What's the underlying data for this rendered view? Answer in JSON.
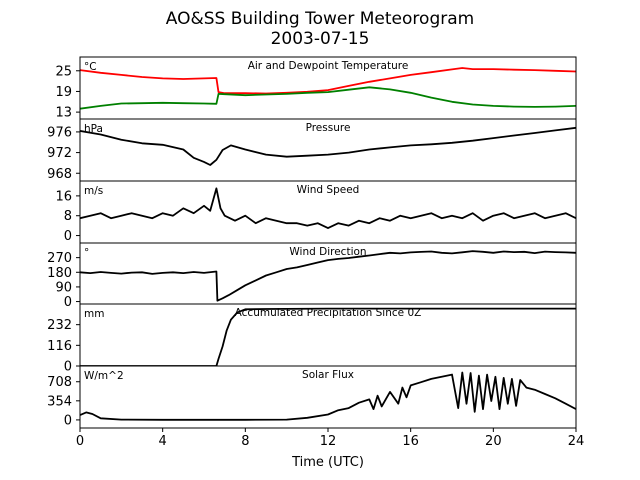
{
  "chart_data": {
    "type": "line",
    "title": "AO&SS Building Tower Meteorogram",
    "subtitle": "2003-07-15",
    "xlabel": "Time (UTC)",
    "xlim": [
      0,
      24
    ],
    "xticks": [
      0,
      4,
      8,
      12,
      16,
      20,
      24
    ],
    "panels": [
      {
        "title": "Air and Dewpoint Temperature",
        "unit": "°C",
        "ylim": [
          11,
          29
        ],
        "yticks": [
          13,
          19,
          25
        ],
        "series": [
          {
            "name": "Air Temperature",
            "color": "#ff0000",
            "x": [
              0,
              1,
              2,
              3,
              4,
              5,
              6,
              6.6,
              6.7,
              7,
              8,
              9,
              10,
              11,
              12,
              13,
              14,
              15,
              16,
              17,
              18,
              18.5,
              19,
              20,
              21,
              22,
              23,
              24
            ],
            "y": [
              25.2,
              24.4,
              23.8,
              23.2,
              22.8,
              22.6,
              22.8,
              22.9,
              18.8,
              18.5,
              18.5,
              18.4,
              18.6,
              18.9,
              19.4,
              20.6,
              21.8,
              22.8,
              23.8,
              24.6,
              25.4,
              25.8,
              25.5,
              25.5,
              25.3,
              25.2,
              25.0,
              24.8
            ]
          },
          {
            "name": "Dewpoint Temperature",
            "color": "#008000",
            "x": [
              0,
              1,
              2,
              3,
              4,
              5,
              6,
              6.6,
              6.7,
              7,
              8,
              9,
              10,
              11,
              12,
              13,
              14,
              15,
              16,
              17,
              18,
              19,
              20,
              21,
              22,
              23,
              24
            ],
            "y": [
              14.0,
              14.8,
              15.5,
              15.6,
              15.7,
              15.6,
              15.5,
              15.4,
              18.3,
              18.2,
              17.9,
              18.1,
              18.3,
              18.6,
              18.8,
              19.5,
              20.2,
              19.6,
              18.6,
              17.2,
              16.0,
              15.2,
              14.8,
              14.6,
              14.5,
              14.6,
              14.8
            ]
          }
        ]
      },
      {
        "title": "Pressure",
        "unit": "hPa",
        "ylim": [
          966.5,
          978.5
        ],
        "yticks": [
          968,
          972,
          976
        ],
        "series": [
          {
            "name": "Pressure",
            "color": "#000000",
            "x": [
              0,
              1,
              2,
              3,
              4,
              5,
              5.5,
              6,
              6.3,
              6.6,
              6.9,
              7.3,
              8,
              9,
              10,
              11,
              12,
              13,
              14,
              15,
              16,
              17,
              18,
              19,
              20,
              21,
              22,
              23,
              24
            ],
            "y": [
              976.2,
              975.5,
              974.5,
              973.8,
              973.5,
              972.6,
              971.0,
              970.2,
              969.6,
              970.6,
              972.5,
              973.4,
              972.6,
              971.6,
              971.2,
              971.4,
              971.6,
              972.0,
              972.6,
              973.0,
              973.4,
              973.6,
              973.9,
              974.3,
              974.8,
              975.3,
              975.8,
              976.3,
              976.8
            ]
          }
        ]
      },
      {
        "title": "Wind Speed",
        "unit": "m/s",
        "ylim": [
          -3,
          22
        ],
        "yticks": [
          0,
          8,
          16
        ],
        "series": [
          {
            "name": "Wind Speed",
            "color": "#000000",
            "x": [
              0,
              0.5,
              1,
              1.5,
              2,
              2.5,
              3,
              3.5,
              4,
              4.5,
              5,
              5.5,
              6,
              6.3,
              6.6,
              6.8,
              7,
              7.5,
              8,
              8.5,
              9,
              9.5,
              10,
              10.5,
              11,
              11.5,
              12,
              12.5,
              13,
              13.5,
              14,
              14.5,
              15,
              15.5,
              16,
              16.5,
              17,
              17.5,
              18,
              18.5,
              19,
              19.5,
              20,
              20.5,
              21,
              21.5,
              22,
              22.5,
              23,
              23.5,
              24
            ],
            "y": [
              7,
              8,
              9,
              7,
              8,
              9,
              8,
              7,
              9,
              8,
              11,
              9,
              12,
              10,
              19,
              11,
              8,
              6,
              8,
              5,
              7,
              6,
              5,
              5,
              4,
              5,
              3,
              5,
              4,
              6,
              5,
              7,
              6,
              8,
              7,
              8,
              9,
              7,
              8,
              7,
              9,
              6,
              8,
              9,
              7,
              8,
              9,
              7,
              8,
              9,
              7
            ]
          }
        ]
      },
      {
        "title": "Wind Direction",
        "unit": "°",
        "ylim": [
          -15,
          360
        ],
        "yticks": [
          0,
          90,
          180,
          270
        ],
        "series": [
          {
            "name": "Wind Direction",
            "color": "#000000",
            "x": [
              0,
              0.5,
              1,
              1.5,
              2,
              2.5,
              3,
              3.5,
              4,
              4.5,
              5,
              5.5,
              6,
              6.6,
              6.65,
              6.9,
              7.2,
              7.6,
              8,
              8.5,
              9,
              9.5,
              10,
              10.5,
              11,
              11.5,
              12,
              12.5,
              13,
              13.5,
              14,
              14.5,
              15,
              15.5,
              16,
              16.5,
              17,
              17.5,
              18,
              18.5,
              19,
              19.5,
              20,
              20.5,
              21,
              21.5,
              22,
              22.5,
              23,
              23.5,
              24
            ],
            "y": [
              180,
              175,
              182,
              176,
              172,
              178,
              180,
              170,
              176,
              180,
              175,
              182,
              176,
              185,
              5,
              20,
              40,
              70,
              100,
              130,
              160,
              180,
              200,
              210,
              225,
              240,
              255,
              262,
              268,
              276,
              283,
              292,
              300,
              296,
              302,
              305,
              308,
              300,
              296,
              303,
              310,
              306,
              300,
              308,
              304,
              306,
              298,
              307,
              304,
              302,
              300
            ]
          }
        ]
      },
      {
        "title": "Accumulated Precipitation Since 0Z",
        "unit": "mm",
        "ylim": [
          0,
          348
        ],
        "yticks": [
          0,
          116,
          232
        ],
        "series": [
          {
            "name": "Accumulated Precipitation",
            "color": "#000000",
            "x": [
              0,
              6.6,
              6.7,
              6.9,
              7.1,
              7.3,
              7.6,
              8,
              9,
              12,
              16,
              20,
              24
            ],
            "y": [
              0,
              0,
              40,
              110,
              200,
              260,
              300,
              318,
              320,
              322,
              322,
              322,
              322
            ]
          }
        ]
      },
      {
        "title": "Solar Flux",
        "unit": "W/m^2",
        "ylim": [
          -150,
          1000
        ],
        "yticks": [
          0,
          354,
          708
        ],
        "series": [
          {
            "name": "Solar Flux",
            "color": "#000000",
            "x": [
              0,
              0.3,
              0.6,
              1,
              2,
              4,
              6,
              8,
              10,
              11,
              12,
              12.5,
              13,
              13.5,
              14,
              14.2,
              14.4,
              14.6,
              15,
              15.4,
              15.6,
              15.8,
              16,
              16.5,
              17,
              17.5,
              18,
              18.3,
              18.5,
              18.7,
              18.9,
              19.1,
              19.3,
              19.5,
              19.7,
              19.9,
              20.1,
              20.3,
              20.5,
              20.7,
              20.9,
              21.1,
              21.3,
              21.6,
              22,
              22.5,
              23,
              23.5,
              24
            ],
            "y": [
              90,
              140,
              110,
              30,
              5,
              2,
              2,
              3,
              5,
              40,
              100,
              180,
              220,
              320,
              380,
              200,
              450,
              250,
              520,
              300,
              600,
              420,
              640,
              700,
              760,
              800,
              840,
              220,
              880,
              300,
              870,
              150,
              820,
              200,
              840,
              350,
              800,
              200,
              780,
              300,
              760,
              260,
              740,
              600,
              560,
              480,
              400,
              300,
              200
            ]
          }
        ]
      }
    ]
  }
}
